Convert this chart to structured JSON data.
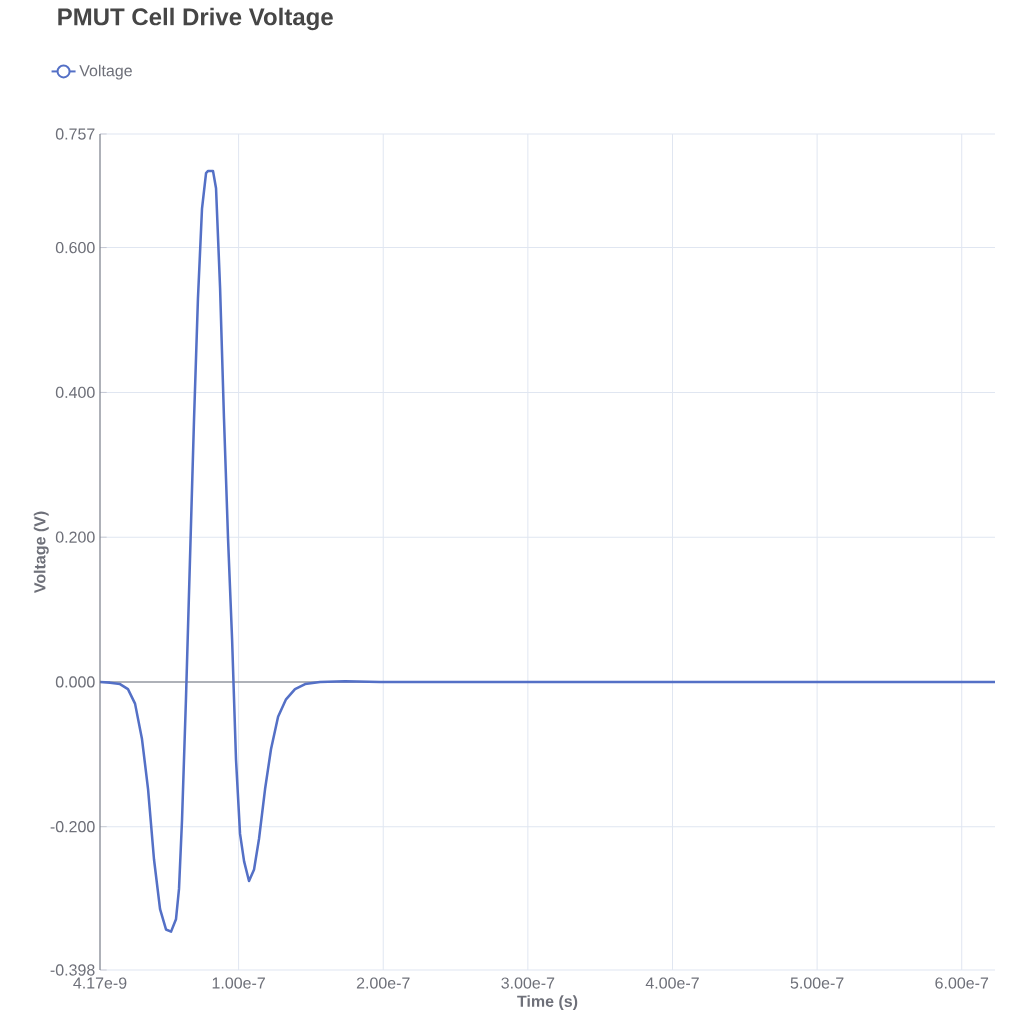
{
  "chart_data": {
    "type": "line",
    "title": "PMUT Cell Drive Voltage",
    "xlabel": "Time (s)",
    "ylabel": "Voltage (V)",
    "x": [
      4.17e-09,
      1.11e-08,
      1.8e-08,
      2.35e-08,
      2.84e-08,
      3.32e-08,
      3.74e-08,
      4.15e-08,
      4.57e-08,
      4.98e-08,
      5.33e-08,
      5.67e-08,
      5.88e-08,
      6.09e-08,
      6.36e-08,
      6.64e-08,
      6.92e-08,
      7.19e-08,
      7.47e-08,
      7.75e-08,
      7.89e-08,
      8.23e-08,
      8.44e-08,
      8.72e-08,
      8.99e-08,
      9.27e-08,
      9.55e-08,
      9.82e-08,
      1.01e-07,
      1.038e-07,
      1.072e-07,
      1.107e-07,
      1.141e-07,
      1.183e-07,
      1.224e-07,
      1.273e-07,
      1.328e-07,
      1.39e-07,
      1.46e-07,
      1.563e-07,
      1.736e-07,
      1.978e-07,
      2.81e-07,
      4.19e-07,
      6.23e-07
    ],
    "series": [
      {
        "name": "Voltage",
        "color": "#5470c6",
        "values": [
          0,
          -0.001,
          -0.003,
          -0.01,
          -0.03,
          -0.079,
          -0.148,
          -0.245,
          -0.314,
          -0.342,
          -0.345,
          -0.328,
          -0.286,
          -0.19,
          -0.024,
          0.17,
          0.364,
          0.53,
          0.654,
          0.703,
          0.706,
          0.706,
          0.682,
          0.544,
          0.364,
          0.198,
          0.059,
          -0.107,
          -0.21,
          -0.248,
          -0.275,
          -0.259,
          -0.217,
          -0.148,
          -0.093,
          -0.048,
          -0.024,
          -0.01,
          -0.003,
          0,
          0.001,
          0,
          0,
          0,
          0
        ]
      }
    ],
    "xlim": [
      4.17e-09,
      6.23e-07
    ],
    "xticks": [
      {
        "value": 4.17e-09,
        "label": "4.17e-9"
      },
      {
        "value": 1e-07,
        "label": "1.00e-7"
      },
      {
        "value": 2e-07,
        "label": "2.00e-7"
      },
      {
        "value": 3e-07,
        "label": "3.00e-7"
      },
      {
        "value": 4e-07,
        "label": "4.00e-7"
      },
      {
        "value": 5e-07,
        "label": "5.00e-7"
      },
      {
        "value": 6e-07,
        "label": "6.00e-7"
      }
    ],
    "ylim": [
      -0.398,
      0.757
    ],
    "yticks": [
      {
        "value": -0.398,
        "label": "-0.398"
      },
      {
        "value": -0.2,
        "label": "-0.200"
      },
      {
        "value": 0,
        "label": "0.000"
      },
      {
        "value": 0.2,
        "label": "0.200"
      },
      {
        "value": 0.4,
        "label": "0.400"
      },
      {
        "value": 0.6,
        "label": "0.600"
      },
      {
        "value": 0.757,
        "label": "0.757"
      }
    ],
    "grid": true,
    "legend": "top left",
    "line_style": "solid"
  }
}
